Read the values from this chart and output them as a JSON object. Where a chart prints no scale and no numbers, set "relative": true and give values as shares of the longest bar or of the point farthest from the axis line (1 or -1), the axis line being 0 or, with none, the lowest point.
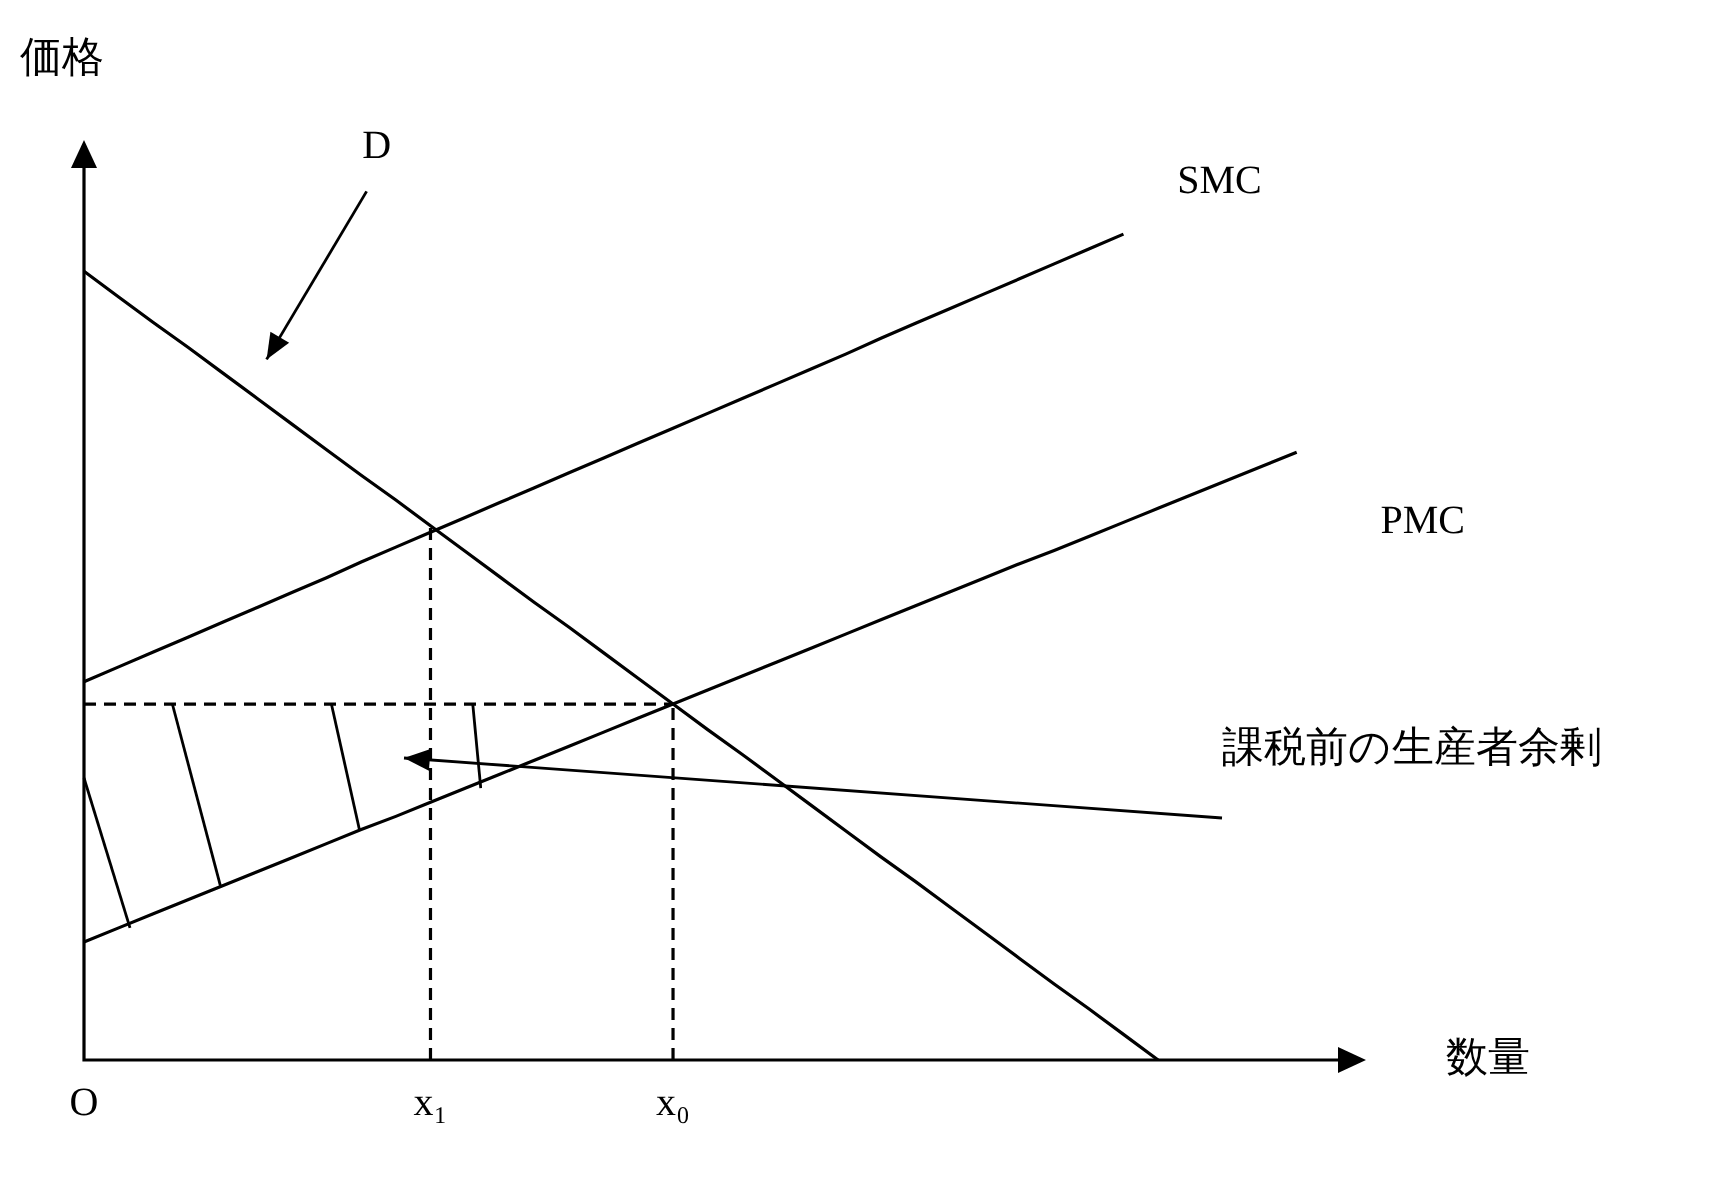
{
  "chart_data": {
    "type": "line",
    "relative": true,
    "xlabel": "数量",
    "ylabel": "価格",
    "grid": false,
    "legend": false,
    "marker": "none",
    "line_style": "solid",
    "categories": [
      "O",
      null,
      null,
      null,
      null,
      null,
      null,
      null,
      null,
      null,
      "x₁",
      null,
      null,
      null,
      null,
      null,
      null,
      "x₀",
      null,
      null,
      null,
      null,
      null,
      null,
      null,
      null,
      null,
      null,
      null,
      null,
      null,
      null,
      null,
      null,
      null,
      null,
      null,
      null
    ],
    "series": [
      {
        "name": "D",
        "color": "#000000",
        "values": [
          0.955,
          0.924,
          0.893,
          0.863,
          0.832,
          0.801,
          0.77,
          0.739,
          0.708,
          0.678,
          0.647,
          0.616,
          0.585,
          0.554,
          0.524,
          0.493,
          0.462,
          0.431,
          0.4,
          0.37,
          0.339,
          0.308,
          0.277,
          0.246,
          0.216,
          0.185,
          0.154,
          0.123,
          0.092,
          0.062,
          0.031,
          0,
          null,
          null,
          null,
          null,
          null,
          null
        ]
      },
      {
        "name": "SMC",
        "color": "#000000",
        "values": [
          0.458,
          0.476,
          0.494,
          0.512,
          0.53,
          0.548,
          0.566,
          0.584,
          0.603,
          0.621,
          0.639,
          0.657,
          0.675,
          0.693,
          0.711,
          0.729,
          0.747,
          0.765,
          0.783,
          0.801,
          0.819,
          0.837,
          0.855,
          0.874,
          0.892,
          0.91,
          0.928,
          0.946,
          0.964,
          0.982,
          1,
          null,
          null,
          null,
          null,
          null,
          null,
          null
        ]
      },
      {
        "name": "PMC",
        "color": "#000000",
        "values": [
          0.143,
          0.16,
          0.177,
          0.194,
          0.211,
          0.228,
          0.245,
          0.262,
          0.279,
          0.295,
          0.312,
          0.329,
          0.346,
          0.363,
          0.38,
          0.397,
          0.414,
          0.431,
          0.448,
          0.465,
          0.482,
          0.499,
          0.516,
          0.533,
          0.55,
          0.567,
          0.584,
          0.601,
          0.617,
          0.634,
          0.651,
          0.668,
          0.685,
          0.702,
          0.719,
          0.736,
          null,
          null
        ]
      }
    ],
    "ref_lines": [
      {
        "axis": "x",
        "value": "x₁",
        "line_style": "dashed"
      },
      {
        "axis": "x",
        "value": "x₀",
        "line_style": "dashed"
      },
      {
        "axis": "y",
        "value": 0.431,
        "line_style": "dashed"
      }
    ],
    "annotations": [
      "課税前の生産者余剰"
    ]
  }
}
